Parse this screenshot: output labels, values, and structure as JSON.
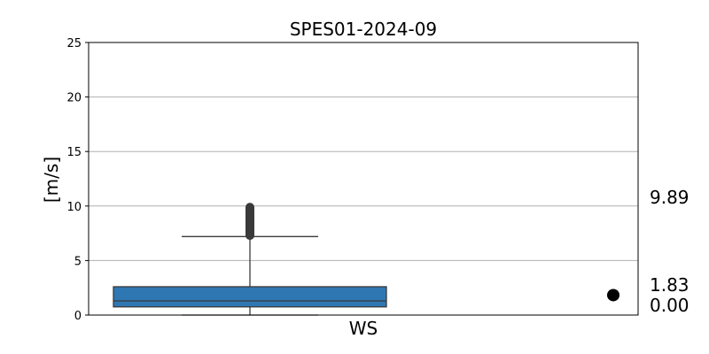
{
  "chart_data": {
    "type": "box",
    "title": "SPES01-2024-09",
    "ylabel": "[m/s]",
    "xlabel": "",
    "categories": [
      "WS"
    ],
    "ylim": [
      0,
      25
    ],
    "yticks": [
      0,
      5,
      10,
      15,
      20,
      25
    ],
    "grid": "horizontal",
    "box": {
      "whisker_low": 0.0,
      "q1": 0.75,
      "median": 1.3,
      "q3": 2.6,
      "whisker_high": 7.2,
      "outliers": [
        7.3,
        7.4,
        7.5,
        7.6,
        7.7,
        7.8,
        7.9,
        8.0,
        8.1,
        8.2,
        8.3,
        8.4,
        8.5,
        8.6,
        8.7,
        8.8,
        8.9,
        9.0,
        9.1,
        9.2,
        9.3,
        9.4,
        9.5,
        9.6,
        9.7,
        9.8,
        9.89
      ]
    },
    "mean_marker": 1.83,
    "annotations": [
      "9.89",
      "1.83",
      "0.00"
    ],
    "colors": {
      "box": "#2e77b2",
      "grid": "#b0b0b0",
      "line": "#3a3a3a",
      "marker": "#000000"
    }
  }
}
